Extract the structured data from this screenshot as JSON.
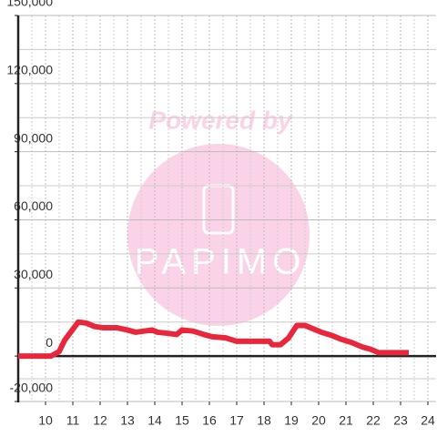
{
  "chart_data": {
    "type": "line",
    "watermark": {
      "caption": "Powered by",
      "brand": "PAPIMO"
    },
    "x": [
      9,
      10.2,
      10.5,
      10.7,
      10.95,
      11.2,
      11.5,
      11.8,
      12.1,
      12.6,
      13,
      13.3,
      13.6,
      13.9,
      14.1,
      14.5,
      14.8,
      15.0,
      15.4,
      15.8,
      16.1,
      16.6,
      17,
      17.5,
      18,
      18.2,
      18.3,
      18.6,
      18.9,
      19.2,
      19.5,
      19.8,
      20.1,
      20.5,
      20.8,
      21.2,
      21.6,
      21.9,
      22.2,
      22.6,
      23.3
    ],
    "series": [
      {
        "color": "#e8273c",
        "values": [
          0,
          0,
          2000,
          7000,
          11000,
          15000,
          14500,
          13000,
          12500,
          12500,
          11500,
          10500,
          11000,
          11500,
          10500,
          10000,
          9500,
          11500,
          11000,
          9500,
          8500,
          8000,
          6500,
          6500,
          6500,
          6500,
          5000,
          5000,
          8000,
          13500,
          13500,
          12000,
          10500,
          9000,
          7500,
          6000,
          4000,
          3000,
          1500,
          1500,
          1500
        ]
      }
    ],
    "xlim": [
      9,
      24.3
    ],
    "xticks": [
      10,
      11,
      12,
      13,
      14,
      15,
      16,
      17,
      18,
      19,
      20,
      21,
      22,
      23,
      24
    ],
    "ylim": [
      -20000,
      150000
    ],
    "yticks": [
      {
        "value": -20000,
        "label": "-20,000"
      },
      0,
      {
        "value": 30000,
        "label": "30,000"
      },
      {
        "value": 60000,
        "label": "60,000"
      },
      {
        "value": 90000,
        "label": "90,000"
      },
      {
        "value": 120000,
        "label": "120,000"
      },
      {
        "value": 150000,
        "label": "150,000"
      }
    ],
    "grid": true
  }
}
